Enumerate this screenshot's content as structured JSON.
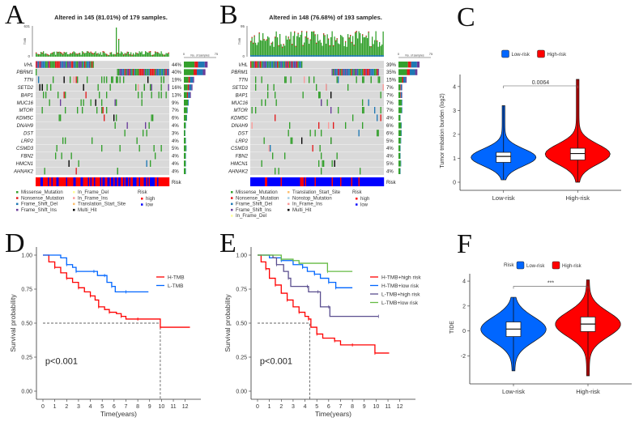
{
  "panels": {
    "A": {
      "letter": "A"
    },
    "B": {
      "letter": "B"
    },
    "C": {
      "letter": "C"
    },
    "D": {
      "letter": "D"
    },
    "E": {
      "letter": "E"
    },
    "F": {
      "letter": "F"
    }
  },
  "colors": {
    "Missense_Mutation": "#33a02c",
    "Nonsense_Mutation": "#e31a1c",
    "Frame_Shift_Del": "#1f78b4",
    "Frame_Shift_Ins": "#6a3d9a",
    "In_Frame_Del": "#ffff99",
    "In_Frame_Ins": "#fb9a99",
    "Translation_Start_Site": "#fdbf6f",
    "Nonstop_Mutation": "#a6cee3",
    "Multi_Hit": "#000000",
    "risk_high": "#ff0000",
    "risk_low": "#0000ff",
    "grid_bg": "#d9d9d9",
    "low_risk": "#0066ff",
    "high_risk": "#ff0000",
    "l_tmb_low": "#66bb44",
    "l_tmb_high": "#5a4e8f"
  },
  "chart_data": [
    {
      "id": "A",
      "type": "heatmap",
      "title": "Altered in 145 (81.01%) of 179 samples.",
      "tmb_axis": {
        "label": "TMB",
        "max": 631,
        "min": 0
      },
      "bar_axis": {
        "label": "No. of samples",
        "min": 0,
        "max": 75
      },
      "genes": [
        "VHL",
        "PBRM1",
        "TTN",
        "SETD2",
        "BAP1",
        "MUC16",
        "MTOR",
        "KDM5C",
        "DNAH9",
        "DST",
        "LRP2",
        "CSMD3",
        "FBN2",
        "HMCN1",
        "AHNAK2"
      ],
      "percents": [
        "44%",
        "40%",
        "19%",
        "16%",
        "13%",
        "9%",
        "7%",
        "6%",
        "4%",
        "3%",
        "4%",
        "5%",
        "4%",
        "4%",
        "4%"
      ],
      "annotation_label": "Risk",
      "legend": {
        "col1": [
          "Missense_Mutation",
          "Nonsense_Mutation",
          "Frame_Shift_Del",
          "Frame_Shift_Ins"
        ],
        "col2": [
          "In_Frame_Del",
          "In_Frame_Ins",
          "Translation_Start_Site",
          "Multi_Hit"
        ],
        "risk_title": "Risk",
        "risk": [
          "high",
          "low"
        ]
      }
    },
    {
      "id": "B",
      "type": "heatmap",
      "title": "Altered in 148 (76.68%) of 193 samples.",
      "tmb_axis": {
        "label": "TMB",
        "max": 95,
        "min": 0
      },
      "bar_axis": {
        "label": "No. of samples",
        "min": 0,
        "max": 75
      },
      "genes": [
        "VHL",
        "PBRM1",
        "TTN",
        "SETD2",
        "BAP1",
        "MUC16",
        "MTOR",
        "KDM5C",
        "DNAH9",
        "DST",
        "LRP2",
        "CSMD3",
        "FBN2",
        "HMCN1",
        "AHNAK2"
      ],
      "percents": [
        "39%",
        "35%",
        "15%",
        "7%",
        "7%",
        "7%",
        "7%",
        "4%",
        "6%",
        "6%",
        "5%",
        "4%",
        "4%",
        "5%",
        "4%"
      ],
      "annotation_label": "Risk",
      "legend": {
        "col1": [
          "Missense_Mutation",
          "Nonsense_Mutation",
          "Frame_Shift_Del",
          "Frame_Shift_Ins",
          "In_Frame_Del"
        ],
        "col2": [
          "Translation_Start_Site",
          "Nonstop_Mutation",
          "In_Frame_Ins",
          "Multi_Hit"
        ],
        "risk_title": "Risk",
        "risk": [
          "high",
          "low"
        ]
      }
    },
    {
      "id": "C",
      "type": "violin",
      "categories": [
        "Low-risk",
        "High-risk"
      ],
      "legend": [
        "Low-risk",
        "High-risk"
      ],
      "legend_title": "",
      "ylabel": "Tumor tmbation burden (log2)",
      "ylim": [
        0,
        4.3
      ],
      "yticks": [
        0,
        1,
        2,
        3,
        4
      ],
      "pvalue_label": "0.0064",
      "boxes": [
        {
          "q1": 0.83,
          "median": 1.08,
          "q3": 1.25,
          "min": 0.1,
          "max": 3.2
        },
        {
          "q1": 0.93,
          "median": 1.2,
          "q3": 1.42,
          "min": 0.0,
          "max": 4.3
        }
      ]
    },
    {
      "id": "D",
      "type": "line",
      "xlabel": "Time(years)",
      "ylabel": "Survival probability",
      "xlim": [
        0,
        12.5
      ],
      "ylim": [
        0,
        1
      ],
      "xticks": [
        0,
        1,
        2,
        3,
        4,
        5,
        6,
        7,
        8,
        9,
        10,
        11,
        12
      ],
      "yticks": [
        "0.00",
        "0.25",
        "0.50",
        "0.75",
        "1.00"
      ],
      "pvalue_label": "p<0.001",
      "median_line": {
        "x": 9.9,
        "y": 0.5
      },
      "series": [
        {
          "name": "H-TMB",
          "points": [
            [
              0,
              1
            ],
            [
              0.5,
              0.95
            ],
            [
              1,
              0.91
            ],
            [
              1.5,
              0.87
            ],
            [
              2,
              0.83
            ],
            [
              2.5,
              0.8
            ],
            [
              3,
              0.76
            ],
            [
              3.5,
              0.73
            ],
            [
              4,
              0.7
            ],
            [
              4.4,
              0.67
            ],
            [
              4.7,
              0.62
            ],
            [
              5.2,
              0.6
            ],
            [
              5.6,
              0.58
            ],
            [
              6.2,
              0.57
            ],
            [
              6.6,
              0.55
            ],
            [
              7,
              0.53
            ],
            [
              8,
              0.53
            ],
            [
              9.9,
              0.53
            ],
            [
              9.9,
              0.47
            ],
            [
              12.4,
              0.47
            ]
          ]
        },
        {
          "name": "L-TMB",
          "points": [
            [
              0,
              1
            ],
            [
              1.5,
              0.98
            ],
            [
              2,
              0.93
            ],
            [
              2.5,
              0.91
            ],
            [
              2.8,
              0.88
            ],
            [
              3.5,
              0.88
            ],
            [
              4.3,
              0.88
            ],
            [
              4.6,
              0.85
            ],
            [
              5.2,
              0.85
            ],
            [
              5.4,
              0.8
            ],
            [
              5.8,
              0.77
            ],
            [
              6.1,
              0.73
            ],
            [
              7,
              0.73
            ],
            [
              8.9,
              0.73
            ]
          ]
        }
      ]
    },
    {
      "id": "E",
      "type": "line",
      "xlabel": "Time(years)",
      "ylabel": "Survival probability",
      "xlim": [
        0,
        12.5
      ],
      "ylim": [
        0,
        1
      ],
      "xticks": [
        0,
        1,
        2,
        3,
        4,
        5,
        6,
        7,
        8,
        9,
        10,
        11,
        12
      ],
      "yticks": [
        "0.00",
        "0.25",
        "0.50",
        "0.75",
        "1.00"
      ],
      "pvalue_label": "p<0.001",
      "median_line": {
        "x": 4.4,
        "y": 0.5
      },
      "series": [
        {
          "name": "H-TMB+high risk",
          "points": [
            [
              0,
              1
            ],
            [
              0.3,
              0.95
            ],
            [
              0.7,
              0.9
            ],
            [
              1,
              0.83
            ],
            [
              1.5,
              0.78
            ],
            [
              2,
              0.72
            ],
            [
              2.5,
              0.67
            ],
            [
              3,
              0.62
            ],
            [
              3.5,
              0.58
            ],
            [
              4,
              0.55
            ],
            [
              4.3,
              0.53
            ],
            [
              4.5,
              0.47
            ],
            [
              5,
              0.42
            ],
            [
              5.5,
              0.39
            ],
            [
              6.5,
              0.37
            ],
            [
              7,
              0.34
            ],
            [
              8,
              0.34
            ],
            [
              9.9,
              0.34
            ],
            [
              9.9,
              0.28
            ],
            [
              11.1,
              0.28
            ]
          ]
        },
        {
          "name": "H-TMB+low risk",
          "points": [
            [
              0,
              1
            ],
            [
              1,
              0.98
            ],
            [
              2,
              0.96
            ],
            [
              3,
              0.93
            ],
            [
              3.8,
              0.91
            ],
            [
              4.2,
              0.88
            ],
            [
              4.8,
              0.86
            ],
            [
              5.3,
              0.83
            ],
            [
              6,
              0.8
            ],
            [
              6.6,
              0.8
            ],
            [
              6.6,
              0.76
            ],
            [
              8,
              0.76
            ]
          ]
        },
        {
          "name": "L-TMB+high risk",
          "points": [
            [
              0,
              1
            ],
            [
              1.3,
              0.98
            ],
            [
              1.6,
              0.93
            ],
            [
              2.2,
              0.88
            ],
            [
              2.6,
              0.83
            ],
            [
              2.8,
              0.77
            ],
            [
              4.2,
              0.77
            ],
            [
              4.3,
              0.73
            ],
            [
              5.1,
              0.73
            ],
            [
              5.3,
              0.62
            ],
            [
              6,
              0.62
            ],
            [
              6.1,
              0.55
            ],
            [
              10.2,
              0.55
            ]
          ]
        },
        {
          "name": "L-TMB+low risk",
          "points": [
            [
              0,
              1
            ],
            [
              1.8,
              1
            ],
            [
              2,
              0.97
            ],
            [
              3,
              0.96
            ],
            [
              3.5,
              0.94
            ],
            [
              5.9,
              0.94
            ],
            [
              5.9,
              0.88
            ],
            [
              8,
              0.88
            ]
          ]
        }
      ]
    },
    {
      "id": "F",
      "type": "violin",
      "categories": [
        "Low-risk",
        "High-risk"
      ],
      "legend_title": "Risk",
      "legend": [
        "Low-risk",
        "High-risk"
      ],
      "ylabel": "TIDE",
      "ylim": [
        -3.6,
        4.2
      ],
      "yticks": [
        -2,
        0,
        2,
        4
      ],
      "pvalue_label": "***",
      "boxes": [
        {
          "q1": -0.45,
          "median": 0.15,
          "q3": 0.72,
          "min": -3.2,
          "max": 2.7
        },
        {
          "q1": -0.05,
          "median": 0.55,
          "q3": 1.12,
          "min": -3.6,
          "max": 4.1
        }
      ]
    }
  ]
}
